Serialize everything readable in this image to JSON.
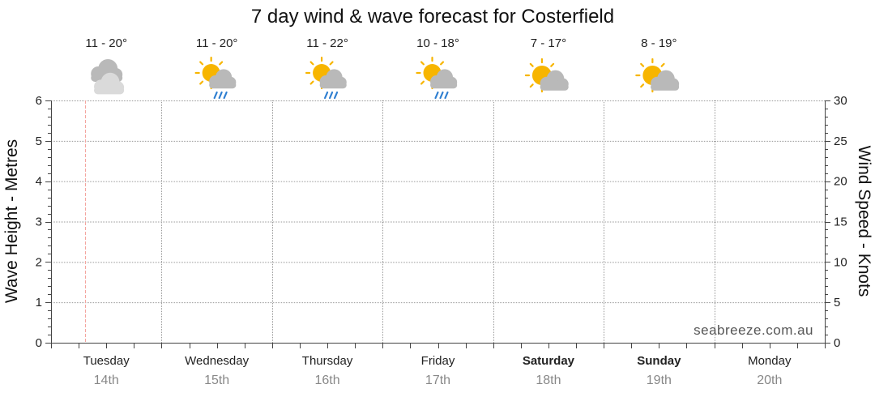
{
  "chart_data": {
    "type": "line",
    "title": "7 day wind & wave forecast for Costerfield",
    "ylabel_left": "Wave Height - Metres",
    "ylabel_right": "Wind Speed - Knots",
    "ylim_left": [
      0,
      6
    ],
    "ylim_right": [
      0,
      30
    ],
    "yticks_left": [
      "0",
      "1",
      "2",
      "3",
      "4",
      "5",
      "6"
    ],
    "yticks_right": [
      "0",
      "5",
      "10",
      "15",
      "20",
      "25",
      "30"
    ],
    "grid": true,
    "series": [],
    "days": [
      {
        "name": "Tuesday",
        "date": "14th",
        "temp": "11 - 20°",
        "icon": "cloudy-icon",
        "weekend": false
      },
      {
        "name": "Wednesday",
        "date": "15th",
        "temp": "11 - 20°",
        "icon": "sun-cloud-rain-icon",
        "weekend": false
      },
      {
        "name": "Thursday",
        "date": "16th",
        "temp": "11 - 22°",
        "icon": "sun-cloud-rain-icon",
        "weekend": false
      },
      {
        "name": "Friday",
        "date": "17th",
        "temp": "10 - 18°",
        "icon": "sun-cloud-rain-icon",
        "weekend": false
      },
      {
        "name": "Saturday",
        "date": "18th",
        "temp": "7 - 17°",
        "icon": "partly-cloudy-icon",
        "weekend": true
      },
      {
        "name": "Sunday",
        "date": "19th",
        "temp": "8 - 19°",
        "icon": "partly-cloudy-icon",
        "weekend": true
      },
      {
        "name": "Monday",
        "date": "20th",
        "temp": "",
        "icon": "",
        "weekend": false
      }
    ],
    "watermark": "seabreeze.com.au"
  },
  "colors": {
    "grid": "#9a9a9a",
    "axis": "#444444",
    "now_line": "#f4a6a0",
    "sun": "#f7b500",
    "cloud_dark": "#b9b9b9",
    "cloud_light": "#dadada",
    "rain": "#2f7fd1"
  }
}
